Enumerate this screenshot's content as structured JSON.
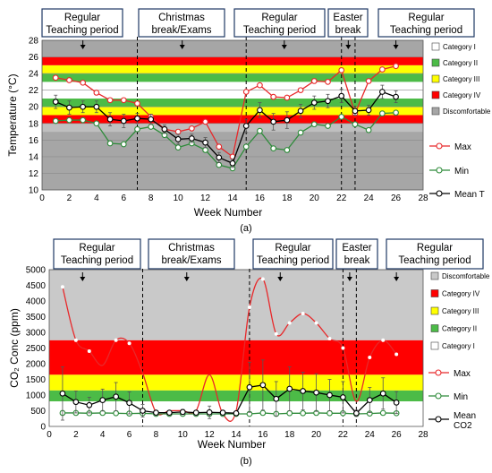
{
  "figure": {
    "label_a": "(a)",
    "label_b": "(b)"
  },
  "chart_data": [
    {
      "type": "line",
      "xlabel": "Week Number",
      "ylabel": "Temperature (°C)",
      "xlim": [
        0,
        28
      ],
      "ylim": [
        10,
        28
      ],
      "xticks": [
        0,
        2,
        4,
        6,
        8,
        10,
        12,
        14,
        16,
        18,
        20,
        22,
        24,
        26,
        28
      ],
      "yticks": [
        10,
        12,
        14,
        16,
        18,
        20,
        22,
        24,
        26,
        28
      ],
      "period_boundaries": [
        7,
        15,
        22,
        23
      ],
      "periods": [
        {
          "line1": "Regular",
          "line2": "Teaching period",
          "arrow_at": 3
        },
        {
          "line1": "Christmas",
          "line2": "break/Exams",
          "arrow_at": 10.3
        },
        {
          "line1": "Regular",
          "line2": "Teaching period",
          "arrow_at": 17.8
        },
        {
          "line1": "Easter",
          "line2": "break",
          "arrow_at": 22.5
        },
        {
          "line1": "Regular",
          "line2": "Teaching period",
          "arrow_at": 26
        }
      ],
      "bands": [
        {
          "name": "Discomfortable",
          "from": 10,
          "to": 17,
          "color": "#a6a6a6"
        },
        {
          "name": "Discomfortable",
          "from": 26,
          "to": 28,
          "color": "#a6a6a6"
        },
        {
          "name": "Category IV",
          "from": 17,
          "to": 18,
          "color": "#bfbfbf"
        },
        {
          "name": "Category IV",
          "from": 18,
          "to": 19,
          "color": "#ff0000"
        },
        {
          "name": "Category III",
          "from": 19,
          "to": 20,
          "color": "#ffff00"
        },
        {
          "name": "Category II",
          "from": 20,
          "to": 21,
          "color": "#4cbb47"
        },
        {
          "name": "Category I",
          "from": 21,
          "to": 23,
          "color": "#ffffff"
        },
        {
          "name": "Category II",
          "from": 23,
          "to": 24,
          "color": "#4cbb47"
        },
        {
          "name": "Category III",
          "from": 24,
          "to": 25,
          "color": "#ffff00"
        },
        {
          "name": "Category IV",
          "from": 25,
          "to": 26,
          "color": "#ff0000"
        }
      ],
      "legend_boxes": [
        {
          "label": "Category I",
          "color": "#ffffff"
        },
        {
          "label": "Category II",
          "color": "#4cbb47"
        },
        {
          "label": "Category III",
          "color": "#ffff00"
        },
        {
          "label": "Category IV",
          "color": "#ff0000"
        },
        {
          "label": "Discomfortable",
          "color": "#a6a6a6"
        }
      ],
      "series": [
        {
          "name": "Max",
          "color": "#e8282a",
          "x": [
            1,
            2,
            3,
            4,
            5,
            6,
            7,
            8,
            9,
            10,
            11,
            12,
            13,
            14,
            15,
            16,
            17,
            18,
            19,
            20,
            21,
            22,
            23,
            24,
            25,
            26
          ],
          "values": [
            23.5,
            23.2,
            22.9,
            21.7,
            20.8,
            20.8,
            20.4,
            18.8,
            17.3,
            17.0,
            17.4,
            18.2,
            15.2,
            14.0,
            21.8,
            22.6,
            21.2,
            21.1,
            22.0,
            23.1,
            23.0,
            24.4,
            19.2,
            23.1,
            24.5,
            24.9
          ]
        },
        {
          "name": "Min",
          "color": "#2e8b3a",
          "x": [
            1,
            2,
            3,
            4,
            5,
            6,
            7,
            8,
            9,
            10,
            11,
            12,
            13,
            14,
            15,
            16,
            17,
            18,
            19,
            20,
            21,
            22,
            23,
            24,
            25,
            26
          ],
          "values": [
            18.3,
            18.4,
            18.4,
            18.0,
            15.6,
            15.5,
            17.3,
            17.6,
            16.6,
            15.1,
            15.6,
            14.8,
            13.0,
            12.6,
            15.2,
            17.1,
            15.0,
            14.8,
            16.9,
            17.9,
            17.7,
            18.8,
            17.9,
            17.2,
            19.2,
            19.3
          ]
        },
        {
          "name": "Mean T",
          "color": "#000000",
          "x": [
            1,
            2,
            3,
            4,
            5,
            6,
            7,
            8,
            9,
            10,
            11,
            12,
            13,
            14,
            15,
            16,
            17,
            18,
            19,
            20,
            21,
            22,
            23,
            24,
            25,
            26
          ],
          "values": [
            20.6,
            19.9,
            20.0,
            20.0,
            18.5,
            18.3,
            18.6,
            18.5,
            17.3,
            16.1,
            16.2,
            15.7,
            13.9,
            13.2,
            17.7,
            19.6,
            18.2,
            18.4,
            19.5,
            20.5,
            20.7,
            21.3,
            19.5,
            19.6,
            21.8,
            21.2
          ],
          "error": [
            0.8,
            0.8,
            0.7,
            0.7,
            0.8,
            0.8,
            0.6,
            0.6,
            0.5,
            0.6,
            0.5,
            0.6,
            0.6,
            0.5,
            0.8,
            0.9,
            1.0,
            1.0,
            0.8,
            0.8,
            0.8,
            0.8,
            0.5,
            0.6,
            0.8,
            0.7
          ]
        }
      ]
    },
    {
      "type": "line",
      "xlabel": "Week Number",
      "ylabel": "CO₂ Conc (ppm)",
      "xlim": [
        0,
        28
      ],
      "ylim": [
        0,
        5000
      ],
      "xticks": [
        0,
        2,
        4,
        6,
        8,
        10,
        12,
        14,
        16,
        18,
        20,
        22,
        24,
        26,
        28
      ],
      "yticks": [
        0,
        500,
        1000,
        1500,
        2000,
        2500,
        3000,
        3500,
        4000,
        4500,
        5000
      ],
      "period_boundaries": [
        7,
        15,
        22,
        23
      ],
      "periods": [
        {
          "line1": "Regular",
          "line2": "Teaching period",
          "arrow_at": 2.5
        },
        {
          "line1": "Christmas",
          "line2": "break/Exams",
          "arrow_at": 10.3
        },
        {
          "line1": "Regular",
          "line2": "Teaching period",
          "arrow_at": 17.3
        },
        {
          "line1": "Easter",
          "line2": "break",
          "arrow_at": 22.5
        },
        {
          "line1": "Regular",
          "line2": "Teaching period",
          "arrow_at": 26
        }
      ],
      "bands": [
        {
          "name": "Category I",
          "from": 0,
          "to": 800,
          "color": "#ffffff"
        },
        {
          "name": "Category II",
          "from": 800,
          "to": 1150,
          "color": "#4cbb47"
        },
        {
          "name": "Category III",
          "from": 1150,
          "to": 1650,
          "color": "#ffff00"
        },
        {
          "name": "Category IV",
          "from": 1650,
          "to": 2750,
          "color": "#ff0000"
        },
        {
          "name": "Discomfortable",
          "from": 2750,
          "to": 5000,
          "color": "#c9c9c9"
        }
      ],
      "legend_boxes": [
        {
          "label": "Discomfortable",
          "color": "#c9c9c9"
        },
        {
          "label": "Category IV",
          "color": "#ff0000"
        },
        {
          "label": "Category III",
          "color": "#ffff00"
        },
        {
          "label": "Category II",
          "color": "#4cbb47"
        },
        {
          "label": "Category I",
          "color": "#ffffff"
        }
      ],
      "series": [
        {
          "name": "Max",
          "color": "#e8282a",
          "smooth": true,
          "x": [
            1,
            2,
            3,
            4,
            5,
            6,
            7,
            8,
            9,
            10,
            11,
            12,
            13,
            14,
            15,
            16,
            17,
            18,
            19,
            20,
            21,
            22,
            23,
            24,
            25,
            26
          ],
          "values": [
            4450,
            2750,
            2400,
            1950,
            2750,
            2650,
            1700,
            450,
            500,
            500,
            500,
            1650,
            400,
            500,
            3800,
            4700,
            2950,
            3300,
            3600,
            3300,
            2800,
            2500,
            800,
            2200,
            2750,
            2300
          ]
        },
        {
          "name": "Min",
          "color": "#2e8b3a",
          "x": [
            1,
            2,
            3,
            4,
            5,
            6,
            7,
            8,
            9,
            10,
            11,
            12,
            13,
            14,
            15,
            16,
            17,
            18,
            19,
            20,
            21,
            22,
            23,
            24,
            25,
            26
          ],
          "values": [
            430,
            430,
            420,
            430,
            420,
            410,
            420,
            400,
            400,
            400,
            400,
            400,
            400,
            400,
            400,
            430,
            400,
            420,
            420,
            430,
            420,
            420,
            400,
            410,
            430,
            420
          ]
        },
        {
          "name": "Mean CO2",
          "color": "#000000",
          "x": [
            1,
            2,
            3,
            4,
            5,
            6,
            7,
            8,
            9,
            10,
            11,
            12,
            13,
            14,
            15,
            16,
            17,
            18,
            19,
            20,
            21,
            22,
            23,
            24,
            25,
            26
          ],
          "values": [
            1050,
            780,
            680,
            840,
            950,
            750,
            500,
            440,
            440,
            460,
            440,
            450,
            440,
            420,
            1250,
            1320,
            880,
            1200,
            1130,
            1080,
            1000,
            930,
            420,
            840,
            1050,
            760
          ],
          "error": [
            850,
            350,
            250,
            350,
            450,
            350,
            200,
            60,
            60,
            80,
            60,
            200,
            60,
            60,
            800,
            800,
            550,
            700,
            600,
            600,
            500,
            500,
            100,
            400,
            500,
            350
          ]
        }
      ]
    }
  ]
}
